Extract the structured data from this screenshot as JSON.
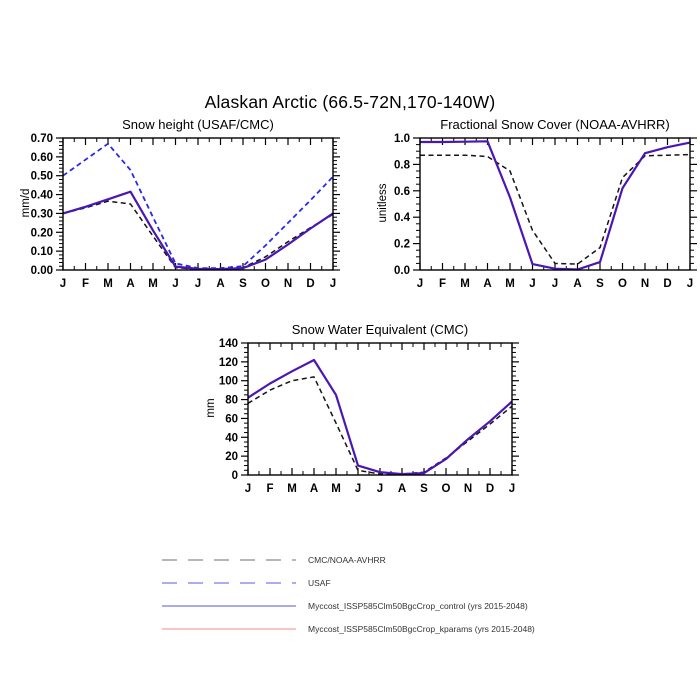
{
  "figure": {
    "title": "Alaskan Arctic (66.5-72N,170-140W)"
  },
  "months": [
    "J",
    "F",
    "M",
    "A",
    "M",
    "J",
    "J",
    "A",
    "S",
    "O",
    "N",
    "D",
    "J"
  ],
  "colors": {
    "observation_black": "#141414",
    "usaf_blue": "#2828EE",
    "control_violet": "#4A16B4",
    "legend_gray": "#8C8C8C",
    "legend_usaf_blue": "#7B7BF0",
    "legend_control_blue": "#7878E0",
    "legend_kparams_red": "#F4A0A0"
  },
  "chart_data": [
    {
      "type": "line",
      "title": "Snow height (USAF/CMC)",
      "ylabel": "mm/d",
      "x_categories": [
        "J",
        "F",
        "M",
        "A",
        "M",
        "J",
        "J",
        "A",
        "S",
        "O",
        "N",
        "D",
        "J"
      ],
      "ylim": [
        0,
        0.7
      ],
      "ytick_labels": [
        "0.00",
        "0.10",
        "0.20",
        "0.30",
        "0.40",
        "0.50",
        "0.60",
        "0.70"
      ],
      "yticks": [
        0,
        0.1,
        0.2,
        0.3,
        0.4,
        0.5,
        0.6,
        0.7
      ],
      "y_minor_step": 0.02,
      "grid": false,
      "legend_position": "shared-bottom",
      "series": [
        {
          "name": "USAF",
          "style": "dashed",
          "color": "#2828EE",
          "width": 1.8,
          "values": [
            0.5,
            0.585,
            0.67,
            0.53,
            0.28,
            0.035,
            0.01,
            0.01,
            0.02,
            0.13,
            0.25,
            0.37,
            0.495
          ]
        },
        {
          "name": "CMC/NOAA-AVHRR",
          "style": "dashed",
          "color": "#141414",
          "width": 1.5,
          "values": [
            0.3,
            0.33,
            0.365,
            0.35,
            0.18,
            0.012,
            0.005,
            0.005,
            0.012,
            0.07,
            0.15,
            0.225,
            0.295
          ]
        },
        {
          "name": "Myccost_ISSP585Clm50BgcCrop_control (yrs 2015-2048)",
          "style": "solid",
          "color": "#4A16B4",
          "width": 2.2,
          "values": [
            0.3,
            0.335,
            0.375,
            0.415,
            0.21,
            0.018,
            0.006,
            0.005,
            0.01,
            0.055,
            0.135,
            0.22,
            0.3
          ]
        }
      ]
    },
    {
      "type": "line",
      "title": "Fractional Snow Cover (NOAA-AVHRR)",
      "ylabel": "unitless",
      "x_categories": [
        "J",
        "F",
        "M",
        "A",
        "M",
        "J",
        "J",
        "A",
        "S",
        "O",
        "N",
        "D",
        "J"
      ],
      "ylim": [
        0,
        1.0
      ],
      "ytick_labels": [
        "0.0",
        "0.2",
        "0.4",
        "0.6",
        "0.8",
        "1.0"
      ],
      "yticks": [
        0,
        0.2,
        0.4,
        0.6,
        0.8,
        1.0
      ],
      "y_minor_step": 0.05,
      "grid": false,
      "legend_position": "shared-bottom",
      "series": [
        {
          "name": "CMC/NOAA-AVHRR",
          "style": "dashed",
          "color": "#141414",
          "width": 1.5,
          "values": [
            0.87,
            0.87,
            0.87,
            0.86,
            0.75,
            0.3,
            0.05,
            0.045,
            0.17,
            0.7,
            0.865,
            0.87,
            0.875
          ]
        },
        {
          "name": "Myccost_ISSP585Clm50BgcCrop_control (yrs 2015-2048)",
          "style": "solid",
          "color": "#4A16B4",
          "width": 2.2,
          "values": [
            0.97,
            0.97,
            0.972,
            0.975,
            0.55,
            0.045,
            0.01,
            0.004,
            0.06,
            0.62,
            0.885,
            0.93,
            0.965
          ]
        }
      ]
    },
    {
      "type": "line",
      "title": "Snow Water Equivalent (CMC)",
      "ylabel": "mm",
      "x_categories": [
        "J",
        "F",
        "M",
        "A",
        "M",
        "J",
        "J",
        "A",
        "S",
        "O",
        "N",
        "D",
        "J"
      ],
      "ylim": [
        0,
        140
      ],
      "ytick_labels": [
        "0",
        "20",
        "40",
        "60",
        "80",
        "100",
        "120",
        "140"
      ],
      "yticks": [
        0,
        20,
        40,
        60,
        80,
        100,
        120,
        140
      ],
      "y_minor_step": 5,
      "grid": false,
      "legend_position": "shared-bottom",
      "series": [
        {
          "name": "CMC/NOAA-AVHRR",
          "style": "dashed",
          "color": "#141414",
          "width": 1.5,
          "values": [
            76,
            90,
            100,
            104,
            55,
            5,
            1,
            1,
            3,
            18,
            36,
            54,
            73
          ]
        },
        {
          "name": "Myccost_ISSP585Clm50BgcCrop_control (yrs 2015-2048)",
          "style": "solid",
          "color": "#4A16B4",
          "width": 2.2,
          "values": [
            82,
            97,
            110,
            122,
            85,
            10,
            3,
            1,
            2,
            17,
            38,
            57,
            78
          ]
        }
      ]
    }
  ],
  "legend": {
    "entries": [
      {
        "label": "CMC/NOAA-AVHRR",
        "style": "dashed",
        "swatch_color": "#8C8C8C"
      },
      {
        "label": "USAF",
        "style": "dashed",
        "swatch_color": "#7B7BF0"
      },
      {
        "label": "Myccost_ISSP585Clm50BgcCrop_control (yrs 2015-2048)",
        "style": "solid",
        "swatch_color": "#7878E0"
      },
      {
        "label": "Myccost_ISSP585Clm50BgcCrop_kparams (yrs 2015-2048)",
        "style": "solid",
        "swatch_color": "#F4A0A0"
      }
    ]
  }
}
